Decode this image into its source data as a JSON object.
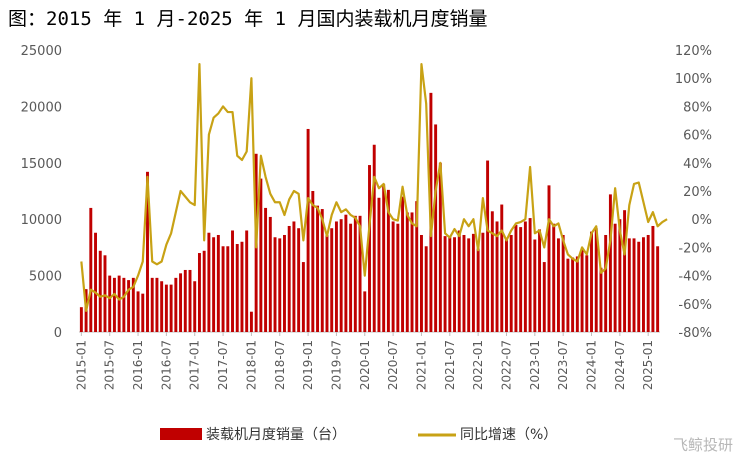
{
  "chart_data": {
    "type": "bar+line",
    "title": "图：2015 年 1 月-2025 年 1 月国内装载机月度销量",
    "x_tick_labels": [
      "2015-01",
      "2015-07",
      "2016-01",
      "2016-07",
      "2017-01",
      "2017-07",
      "2018-01",
      "2018-07",
      "2019-01",
      "2019-07",
      "2020-01",
      "2020-07",
      "2021-01",
      "2021-07",
      "2022-01",
      "2022-07",
      "2023-01",
      "2023-07",
      "2024-01",
      "2024-07",
      "2025-01"
    ],
    "y_left": {
      "ylim": [
        0,
        25000
      ],
      "ticks": [
        "0",
        "5000",
        "10000",
        "15000",
        "20000",
        "25000"
      ]
    },
    "y_right": {
      "ylim": [
        -80,
        120
      ],
      "ticks": [
        "-80%",
        "-60%",
        "-40%",
        "-20%",
        "0%",
        "20%",
        "40%",
        "60%",
        "80%",
        "100%",
        "120%"
      ]
    },
    "series": [
      {
        "name": "装载机月度销量（台）",
        "type": "bar",
        "axis": "left",
        "color": "#c00000",
        "values": [
          2200,
          3800,
          11000,
          8800,
          7200,
          6800,
          5000,
          4800,
          5000,
          4800,
          4600,
          4800,
          3600,
          3400,
          14200,
          4800,
          4800,
          4500,
          4200,
          4200,
          4800,
          5200,
          5500,
          5500,
          4500,
          7000,
          7200,
          8800,
          8400,
          8600,
          7600,
          7600,
          9000,
          7800,
          8000,
          9000,
          1800,
          15800,
          13600,
          11000,
          10200,
          8400,
          8300,
          8600,
          9400,
          9800,
          9200,
          6200,
          18000,
          12500,
          11200,
          10900,
          8600,
          9200,
          9800,
          10000,
          10400,
          9600,
          10300,
          10300,
          3600,
          14800,
          16600,
          11900,
          13100,
          12600,
          9800,
          9600,
          12000,
          10600,
          10600,
          11600,
          8600,
          7600,
          21200,
          18400,
          15000,
          8500,
          8400,
          8400,
          9000,
          8600,
          8300,
          8700,
          7400,
          8800,
          15200,
          10700,
          9800,
          11300,
          8300,
          8600,
          9500,
          9300,
          9800,
          10100,
          8200,
          9100,
          6200,
          13000,
          9600,
          8300,
          8600,
          6500,
          6600,
          6700,
          7300,
          6800,
          8900,
          9200,
          5700,
          8600,
          12200,
          9600,
          10000,
          10800,
          8300,
          8300,
          8000,
          8400,
          8600,
          9400,
          7600
        ]
      },
      {
        "name": "同比增速（%）",
        "type": "line",
        "axis": "right",
        "color": "#c8a215",
        "values": [
          -30,
          -65,
          -50,
          -52,
          -55,
          -54,
          -56,
          -53,
          -57,
          -55,
          -50,
          -48,
          -40,
          -30,
          30,
          -30,
          -32,
          -30,
          -18,
          -10,
          5,
          20,
          16,
          12,
          10,
          110,
          -15,
          60,
          72,
          75,
          80,
          76,
          76,
          45,
          42,
          48,
          100,
          -20,
          45,
          30,
          18,
          12,
          12,
          3,
          14,
          20,
          18,
          -15,
          15,
          10,
          8,
          0,
          -12,
          3,
          12,
          5,
          7,
          3,
          1,
          -5,
          -40,
          -4,
          30,
          22,
          25,
          5,
          0,
          -1,
          23,
          3,
          -3,
          -5,
          110,
          82,
          -12,
          20,
          40,
          -10,
          -13,
          -7,
          -12,
          0,
          -5,
          0,
          -22,
          15,
          -8,
          -10,
          -12,
          -8,
          -15,
          -8,
          -3,
          -2,
          0,
          37,
          -10,
          -8,
          -20,
          0,
          -5,
          -3,
          -15,
          -25,
          -28,
          -30,
          -20,
          -25,
          -10,
          -5,
          -38,
          -35,
          -15,
          22,
          -8,
          -25,
          10,
          25,
          26,
          12,
          -2,
          5,
          -5,
          -2,
          0
        ]
      }
    ],
    "legend_position": "bottom",
    "watermark": "飞鲸投研"
  }
}
